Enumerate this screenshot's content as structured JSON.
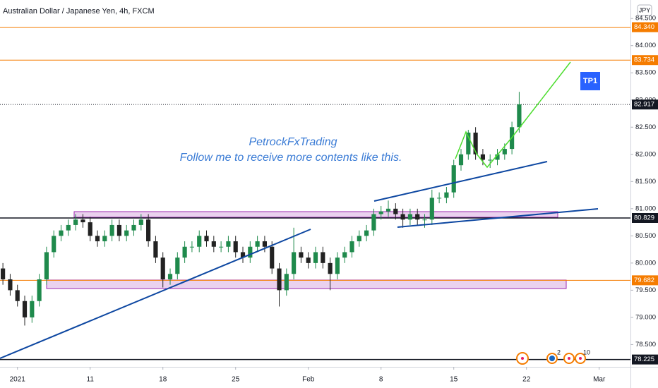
{
  "chart_data": {
    "type": "candlestick",
    "title": "Australian Dollar / Japanese Yen, 4h, FXCM",
    "currency": "JPY",
    "watermark": [
      "PetrockFxTrading",
      "Follow me to receive more contents like this."
    ],
    "target_label": "TP1",
    "events": [
      "2",
      "10"
    ],
    "up_color": "#1f8a4c",
    "down_color": "#222222",
    "x": [
      -1,
      -0.5,
      0,
      0.5,
      1,
      1.5,
      2,
      2.5,
      3,
      3.5,
      4,
      4.5,
      5,
      5.5,
      6,
      6.5,
      7,
      7.5,
      8,
      8.5,
      9,
      9.5,
      10,
      10.5,
      11,
      11.5,
      12,
      12.5,
      13,
      13.5,
      14,
      14.5,
      15,
      15.5,
      16,
      16.5,
      17,
      17.5,
      18,
      18.5,
      19,
      19.5,
      20,
      20.5,
      21,
      21.5,
      22,
      22.5,
      23,
      23.5,
      24,
      24.5,
      25,
      25.5,
      26,
      26.5,
      27,
      27.5,
      28,
      28.5,
      29,
      29.5,
      30,
      30.5,
      31,
      31.5,
      32,
      32.5,
      33,
      33.5,
      34,
      34.5
    ],
    "open": [
      79.9,
      79.7,
      79.5,
      79.3,
      79.0,
      79.3,
      79.7,
      80.2,
      80.5,
      80.6,
      80.7,
      80.8,
      80.75,
      80.5,
      80.4,
      80.5,
      80.7,
      80.5,
      80.6,
      80.7,
      80.8,
      80.4,
      80.1,
      79.7,
      79.8,
      80.1,
      80.3,
      80.3,
      80.5,
      80.4,
      80.3,
      80.3,
      80.4,
      80.2,
      80.1,
      80.3,
      80.4,
      80.3,
      79.9,
      79.5,
      79.8,
      80.2,
      80.1,
      80.0,
      80.2,
      80.0,
      79.8,
      80.1,
      80.2,
      80.4,
      80.5,
      80.6,
      80.9,
      80.95,
      81.0,
      80.9,
      80.8,
      80.9,
      80.8,
      80.8,
      81.2,
      81.2,
      81.3,
      81.8,
      82.0,
      82.4,
      82.0,
      81.9,
      81.9,
      82.0,
      82.1,
      82.5
    ],
    "high": [
      80.0,
      79.8,
      79.6,
      79.4,
      79.4,
      79.8,
      80.3,
      80.6,
      80.7,
      80.8,
      80.9,
      80.9,
      80.85,
      80.6,
      80.6,
      80.8,
      80.8,
      80.7,
      80.8,
      80.9,
      80.9,
      80.5,
      80.2,
      79.9,
      80.2,
      80.4,
      80.4,
      80.6,
      80.6,
      80.5,
      80.4,
      80.5,
      80.5,
      80.3,
      80.4,
      80.5,
      80.5,
      80.4,
      80.0,
      79.9,
      80.65,
      80.3,
      80.2,
      80.3,
      80.3,
      80.1,
      80.2,
      80.3,
      80.5,
      80.6,
      80.7,
      81.0,
      81.05,
      81.15,
      81.1,
      81.0,
      81.0,
      81.0,
      80.9,
      81.35,
      81.3,
      81.4,
      81.9,
      82.1,
      82.45,
      82.5,
      82.1,
      82.0,
      82.1,
      82.2,
      82.6,
      83.15
    ],
    "low": [
      79.6,
      79.4,
      79.2,
      78.85,
      78.9,
      79.2,
      79.6,
      80.1,
      80.4,
      80.5,
      80.6,
      80.65,
      80.4,
      80.3,
      80.3,
      80.4,
      80.4,
      80.4,
      80.5,
      80.6,
      80.3,
      80.0,
      79.55,
      79.6,
      79.7,
      80.0,
      80.2,
      80.2,
      80.3,
      80.2,
      80.2,
      80.2,
      80.1,
      80.0,
      80.0,
      80.2,
      80.2,
      79.8,
      79.2,
      79.4,
      79.7,
      80.0,
      79.9,
      79.9,
      79.9,
      79.5,
      79.7,
      80.0,
      80.1,
      80.3,
      80.4,
      80.5,
      80.8,
      80.85,
      80.8,
      80.65,
      80.7,
      80.7,
      80.65,
      80.7,
      81.1,
      81.1,
      81.2,
      81.7,
      81.9,
      81.9,
      81.8,
      81.75,
      81.8,
      81.9,
      82.0,
      82.4
    ],
    "close": [
      79.7,
      79.5,
      79.3,
      79.0,
      79.3,
      79.7,
      80.2,
      80.5,
      80.6,
      80.7,
      80.8,
      80.75,
      80.5,
      80.4,
      80.5,
      80.7,
      80.5,
      80.6,
      80.7,
      80.8,
      80.4,
      80.1,
      79.7,
      79.8,
      80.1,
      80.3,
      80.3,
      80.5,
      80.4,
      80.3,
      80.3,
      80.4,
      80.2,
      80.1,
      80.3,
      80.4,
      80.3,
      79.9,
      79.5,
      79.8,
      80.2,
      80.1,
      80.0,
      80.2,
      80.0,
      79.8,
      80.1,
      80.2,
      80.4,
      80.5,
      80.6,
      80.9,
      80.95,
      81.0,
      80.9,
      80.8,
      80.9,
      80.8,
      80.8,
      81.2,
      81.2,
      81.3,
      81.8,
      82.0,
      82.4,
      82.0,
      81.9,
      81.9,
      82.0,
      82.1,
      82.5,
      82.92
    ],
    "xlim": [
      -1.2,
      42.15
    ],
    "ylim": [
      78.09,
      84.84
    ],
    "xticks": [
      {
        "value": 0,
        "label": "2021"
      },
      {
        "value": 5,
        "label": "11"
      },
      {
        "value": 10,
        "label": "18"
      },
      {
        "value": 15,
        "label": "25"
      },
      {
        "value": 20,
        "label": "Feb"
      },
      {
        "value": 25,
        "label": "8"
      },
      {
        "value": 30,
        "label": "15"
      },
      {
        "value": 35,
        "label": "22"
      },
      {
        "value": 40,
        "label": "Mar"
      }
    ],
    "yticks": [
      {
        "value": 78.5,
        "label": "78.500"
      },
      {
        "value": 79,
        "label": "79.000"
      },
      {
        "value": 79.5,
        "label": "79.500"
      },
      {
        "value": 80,
        "label": "80.000"
      },
      {
        "value": 80.5,
        "label": "80.500"
      },
      {
        "value": 81,
        "label": "81.000"
      },
      {
        "value": 81.5,
        "label": "81.500"
      },
      {
        "value": 82,
        "label": "82.000"
      },
      {
        "value": 82.5,
        "label": "82.500"
      },
      {
        "value": 83,
        "label": "83.000"
      },
      {
        "value": 83.5,
        "label": "83.500"
      },
      {
        "value": 84,
        "label": "84.000"
      },
      {
        "value": 84.5,
        "label": "84.500"
      }
    ],
    "levels": [
      {
        "value": 84.34,
        "label": "84.340",
        "color": "#f57c00"
      },
      {
        "value": 83.734,
        "label": "83.734",
        "color": "#f57c00"
      },
      {
        "value": 82.917,
        "label": "82.917",
        "color": "#131722"
      },
      {
        "value": 80.829,
        "label": "80.829",
        "color": "#131722"
      },
      {
        "value": 79.682,
        "label": "79.682",
        "color": "#f57c00"
      },
      {
        "value": 78.225,
        "label": "78.225",
        "color": "#131722"
      }
    ]
  }
}
